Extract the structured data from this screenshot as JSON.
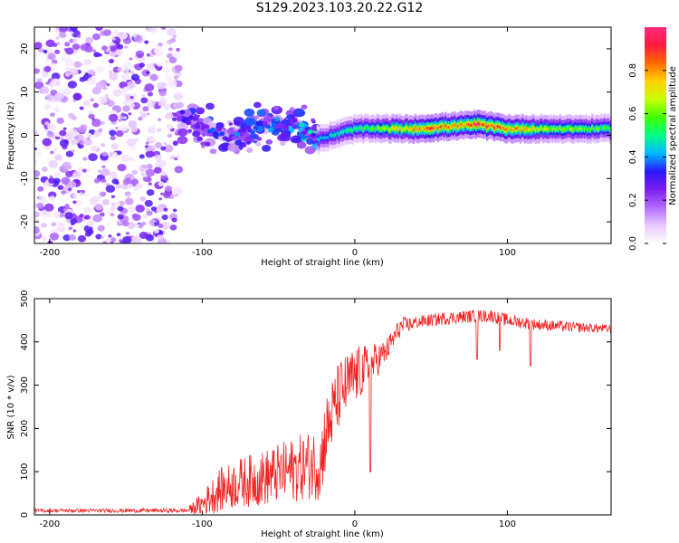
{
  "title": "S129.2023.103.20.22.G12",
  "colors": {
    "snr_line": "#ee2222",
    "colormap": [
      "#ffffff",
      "#e9c9ff",
      "#b06bff",
      "#7b1cf0",
      "#2a18ff",
      "#00b8ff",
      "#00ff88",
      "#40ff00",
      "#c8ff00",
      "#ffd000",
      "#ff6a00",
      "#ff1a40",
      "#ff2a80"
    ]
  },
  "chart_data": [
    {
      "type": "heatmap",
      "name": "spectrogram",
      "xlabel": "Height of straight line (km)",
      "ylabel": "Frequency (Hz)",
      "xlim": [
        -210,
        168
      ],
      "ylim": [
        -25,
        25
      ],
      "xticks": [
        -200,
        -100,
        0,
        100
      ],
      "xtick_labels": [
        "-200",
        "-100",
        "0",
        "100"
      ],
      "yticks": [
        -20,
        -10,
        0,
        10,
        20
      ],
      "ytick_labels": [
        "-20",
        "-10",
        "0",
        "10",
        "20"
      ],
      "colorbar": {
        "label": "Normalized spectral amplitude",
        "range": [
          0,
          1
        ],
        "ticks": [
          0.0,
          0.2,
          0.4,
          0.6,
          0.8
        ],
        "tick_labels": [
          "0.0",
          "0.2",
          "0.4",
          "0.6",
          "0.8"
        ]
      },
      "band": {
        "noise_region_x": [
          -210,
          -115
        ],
        "transition_x": [
          -115,
          -25
        ],
        "tone_center_hz": [
          [
            -115,
            5
          ],
          [
            -100,
            2
          ],
          [
            -80,
            0
          ],
          [
            -60,
            2
          ],
          [
            -40,
            3
          ],
          [
            -25,
            -1
          ],
          [
            0,
            1.5
          ],
          [
            40,
            1.5
          ],
          [
            80,
            2.5
          ],
          [
            100,
            1.5
          ],
          [
            168,
            1.5
          ]
        ],
        "peak_amplitude": [
          [
            -115,
            0.3
          ],
          [
            -60,
            0.35
          ],
          [
            -25,
            0.45
          ],
          [
            0,
            0.55
          ],
          [
            30,
            0.75
          ],
          [
            50,
            0.9
          ],
          [
            70,
            0.8
          ],
          [
            80,
            0.95
          ],
          [
            100,
            0.85
          ],
          [
            130,
            0.65
          ],
          [
            168,
            0.6
          ]
        ]
      }
    },
    {
      "type": "line",
      "name": "snr",
      "xlabel": "Height of straight line (km)",
      "ylabel": "SNR (10 * v/v)",
      "xlim": [
        -210,
        168
      ],
      "ylim": [
        0,
        500
      ],
      "xticks": [
        -200,
        -100,
        0,
        100
      ],
      "xtick_labels": [
        "-200",
        "-100",
        "0",
        "100"
      ],
      "yticks": [
        0,
        100,
        200,
        300,
        400,
        500
      ],
      "ytick_labels": [
        "0",
        "100",
        "200",
        "300",
        "400",
        "500"
      ],
      "trend": {
        "x": [
          -210,
          -150,
          -110,
          -100,
          -90,
          -75,
          -60,
          -45,
          -30,
          -22,
          -20,
          -15,
          -10,
          0,
          10,
          20,
          30,
          40,
          60,
          80,
          90,
          100,
          120,
          140,
          168
        ],
        "y": [
          10,
          10,
          10,
          25,
          55,
          75,
          85,
          100,
          115,
          120,
          175,
          230,
          280,
          320,
          345,
          375,
          435,
          445,
          455,
          460,
          460,
          450,
          440,
          435,
          430
        ]
      },
      "spread": {
        "x": [
          -210,
          -110,
          -90,
          -30,
          -20,
          0,
          20,
          40,
          100,
          168
        ],
        "y": [
          4,
          5,
          50,
          80,
          90,
          70,
          30,
          15,
          15,
          10
        ]
      },
      "dips": [
        {
          "x": 10,
          "y": 100
        },
        {
          "x": 80,
          "y": 360
        },
        {
          "x": 115,
          "y": 345
        },
        {
          "x": 95,
          "y": 380
        }
      ]
    }
  ]
}
